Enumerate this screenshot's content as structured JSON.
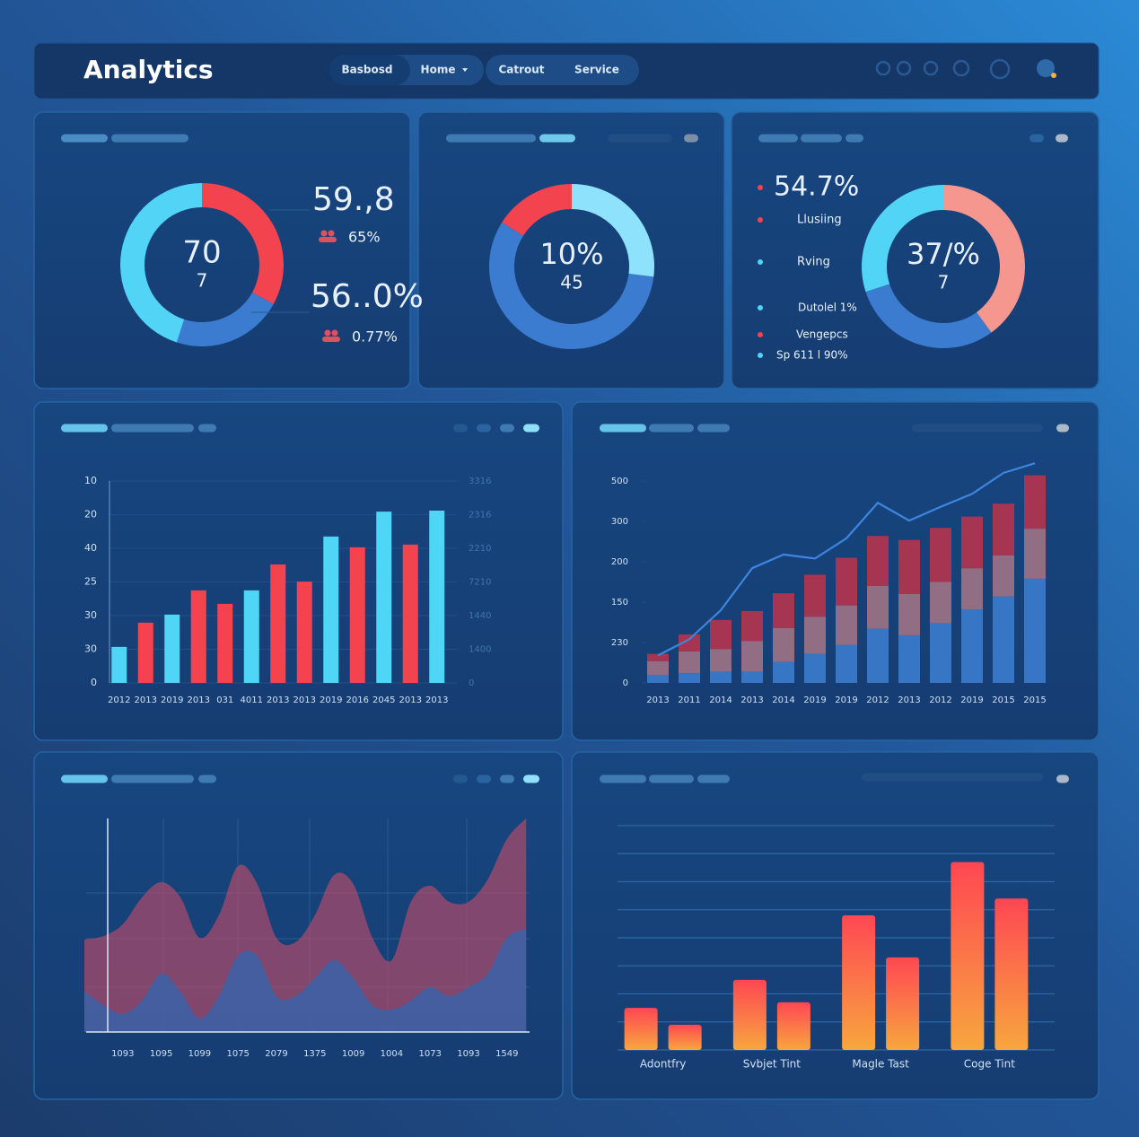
{
  "header": {
    "title": "Analytics",
    "nav": [
      "Basbosd",
      "Home",
      "Catrout",
      "Service"
    ]
  },
  "chart_data": [
    {
      "type": "donut",
      "values": [
        33,
        22,
        45
      ],
      "colors": [
        "#f2434f",
        "#3b7bd0",
        "#52d4f6"
      ],
      "center_labels": [
        "70",
        "7"
      ],
      "annotations": [
        "59.,8",
        "65%",
        "56..0%",
        "0.77%"
      ]
    },
    {
      "type": "donut",
      "values": [
        27,
        57,
        16
      ],
      "colors": [
        "#8fe2fb",
        "#3b7bd0",
        "#f2434f"
      ],
      "center_labels": [
        "10%",
        "45"
      ]
    },
    {
      "type": "donut",
      "values": [
        40,
        30,
        30
      ],
      "colors": [
        "#f5968f",
        "#3b7bd0",
        "#52d4f6"
      ],
      "center_labels": [
        "37/%",
        "7"
      ],
      "annotations": [
        "54.7%",
        "Llusiing",
        "Rving",
        "Dutolel 1%",
        "Vengepcs",
        "Sp 611 l 90%"
      ]
    },
    {
      "type": "bar",
      "categories": [
        "2012",
        "2013",
        "2019",
        "2013",
        "031",
        "4011",
        "2013",
        "2013",
        "2019",
        "2016",
        "2045",
        "2013",
        "2013"
      ],
      "values": [
        10.7,
        17.9,
        20.3,
        27.5,
        23.5,
        27.5,
        35.2,
        30.1,
        43.5,
        40.3,
        50.9,
        41.1,
        51.2
      ],
      "colors": [
        "#4fd6f7",
        "#f5424f",
        "#4fd6f7",
        "#f5424f",
        "#f5424f",
        "#4fd6f7",
        "#f5424f",
        "#f5424f",
        "#4fd6f7",
        "#f5424f",
        "#4fd6f7",
        "#f5424f",
        "#4fd6f7"
      ],
      "ylim": [
        0,
        60
      ],
      "yticks": [
        0,
        {
          "value": 10,
          "label": "30"
        },
        {
          "value": 20,
          "label": "30"
        },
        {
          "value": 30,
          "label": "25"
        },
        40,
        {
          "value": 50,
          "label": "20"
        },
        {
          "value": 60,
          "label": "10"
        }
      ],
      "y2lim": [
        0,
        60
      ],
      "y2ticks": [
        0,
        {
          "value": 10,
          "label": "1400"
        },
        {
          "value": 20,
          "label": "1440"
        },
        {
          "value": 30,
          "label": "7210"
        },
        {
          "value": 40,
          "label": "2210"
        },
        {
          "value": 50,
          "label": "2316"
        },
        {
          "value": 60,
          "label": "3316"
        }
      ],
      "grid": true
    },
    {
      "type": "stacked_bar_line",
      "categories": [
        "2013",
        "2011",
        "2014",
        "2013",
        "2014",
        "2019",
        "2019",
        "2012",
        "2013",
        "2012",
        "2019",
        "2015",
        "2015"
      ],
      "series": [
        {
          "color": "#3a7bcc",
          "values": [
            10,
            12,
            14,
            14,
            26,
            36,
            47,
            67,
            59,
            74,
            91,
            107,
            129
          ]
        },
        {
          "color": "#9c7284",
          "values": [
            17,
            27,
            28,
            38,
            42,
            46,
            49,
            53,
            51,
            51,
            51,
            51,
            62
          ]
        },
        {
          "color": "#b3344e",
          "values": [
            9,
            21,
            36,
            37,
            43,
            52,
            59,
            62,
            67,
            67,
            64,
            64,
            66
          ]
        }
      ],
      "line": {
        "color": "#3d86e0",
        "values": [
          34,
          54,
          90,
          142,
          159,
          154,
          179,
          223,
          201,
          218,
          234,
          260,
          272
        ]
      },
      "ylim": [
        0,
        280
      ],
      "yticks": [
        0,
        {
          "value": 50,
          "label": "230"
        },
        {
          "value": 100,
          "label": "150"
        },
        {
          "value": 150,
          "label": "200"
        },
        {
          "value": 200,
          "label": "300"
        },
        {
          "value": 250,
          "label": "500"
        }
      ]
    },
    {
      "type": "area",
      "categories": [
        null,
        null,
        "1093",
        null,
        "1095",
        null,
        "1099",
        null,
        "1075",
        null,
        "2079",
        null,
        "1375",
        null,
        "1009",
        null,
        "1004",
        null,
        "1073",
        null,
        "1093",
        null,
        "1549",
        null
      ],
      "series": [
        {
          "color": "#b04a6a",
          "values": [
            103,
            107,
            120,
            150,
            167,
            150,
            105,
            130,
            185,
            165,
            105,
            100,
            130,
            175,
            165,
            105,
            80,
            145,
            163,
            145,
            145,
            170,
            215,
            238
          ]
        },
        {
          "color": "#2f66b0",
          "values": [
            45,
            30,
            20,
            35,
            65,
            45,
            15,
            40,
            85,
            85,
            40,
            40,
            60,
            80,
            60,
            30,
            25,
            35,
            50,
            40,
            50,
            65,
            105,
            115
          ]
        }
      ],
      "ylim": [
        0,
        240
      ]
    },
    {
      "type": "grouped_bar",
      "categories": [
        "Adontfry",
        "Svbjet Tint",
        "Magle Tast",
        "Coge Tint"
      ],
      "series": [
        {
          "values": [
            1.5,
            2.5,
            4.8,
            6.7
          ]
        },
        {
          "values": [
            0.9,
            1.7,
            3.3,
            5.4
          ]
        }
      ],
      "gradient": [
        "#ff4753",
        "#f7a63e"
      ],
      "ylim": [
        0,
        8
      ],
      "yticks": [
        0,
        1,
        2,
        3,
        4,
        5,
        6,
        7,
        8
      ],
      "grid": true
    }
  ]
}
